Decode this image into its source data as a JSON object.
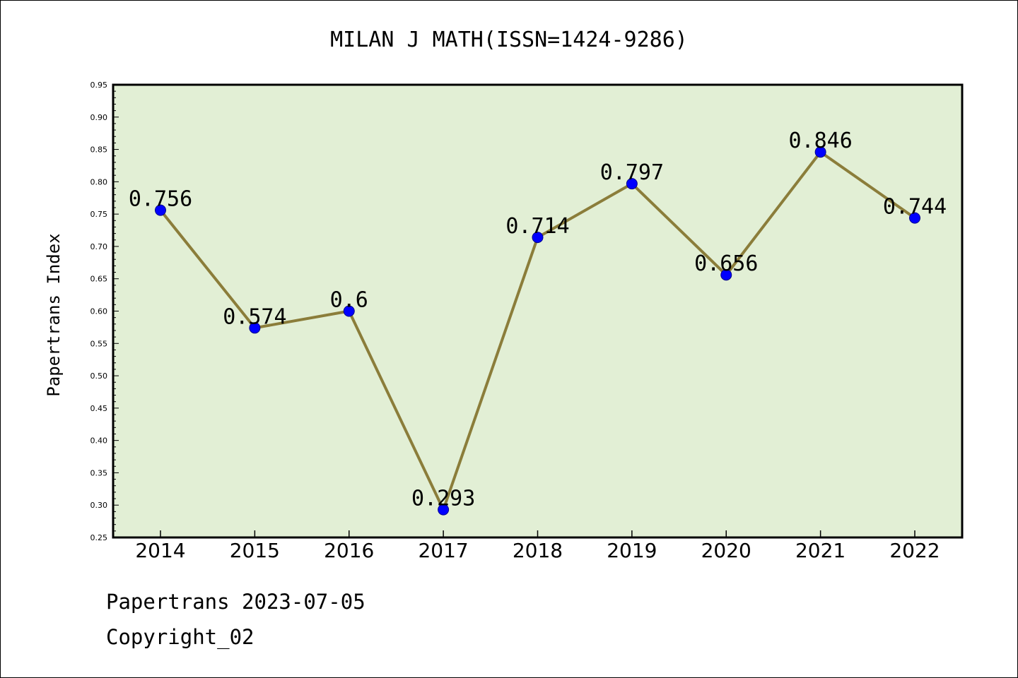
{
  "chart_data": {
    "type": "line",
    "title": "MILAN J MATH(ISSN=1424-9286)",
    "ylabel": "Papertrans Index",
    "xlabel": "",
    "categories": [
      "2014",
      "2015",
      "2016",
      "2017",
      "2018",
      "2019",
      "2020",
      "2021",
      "2022"
    ],
    "values": [
      0.756,
      0.574,
      0.6,
      0.293,
      0.714,
      0.797,
      0.656,
      0.846,
      0.744
    ],
    "data_labels": [
      "0.756",
      "0.574",
      "0.6",
      "0.293",
      "0.714",
      "0.797",
      "0.656",
      "0.846",
      "0.744"
    ],
    "ylim": [
      0.25,
      0.95
    ],
    "yticks": [
      "0.25",
      "0.30",
      "0.35",
      "0.40",
      "0.45",
      "0.50",
      "0.55",
      "0.60",
      "0.65",
      "0.70",
      "0.75",
      "0.80",
      "0.85",
      "0.90",
      "0.95"
    ],
    "grid": false,
    "colors": {
      "plot_background": "#e2efd5",
      "line": "#8b7d3a",
      "marker": "#0000ff"
    }
  },
  "footer": {
    "date_line": "Papertrans 2023-07-05",
    "copyright": "Copyright_02"
  }
}
